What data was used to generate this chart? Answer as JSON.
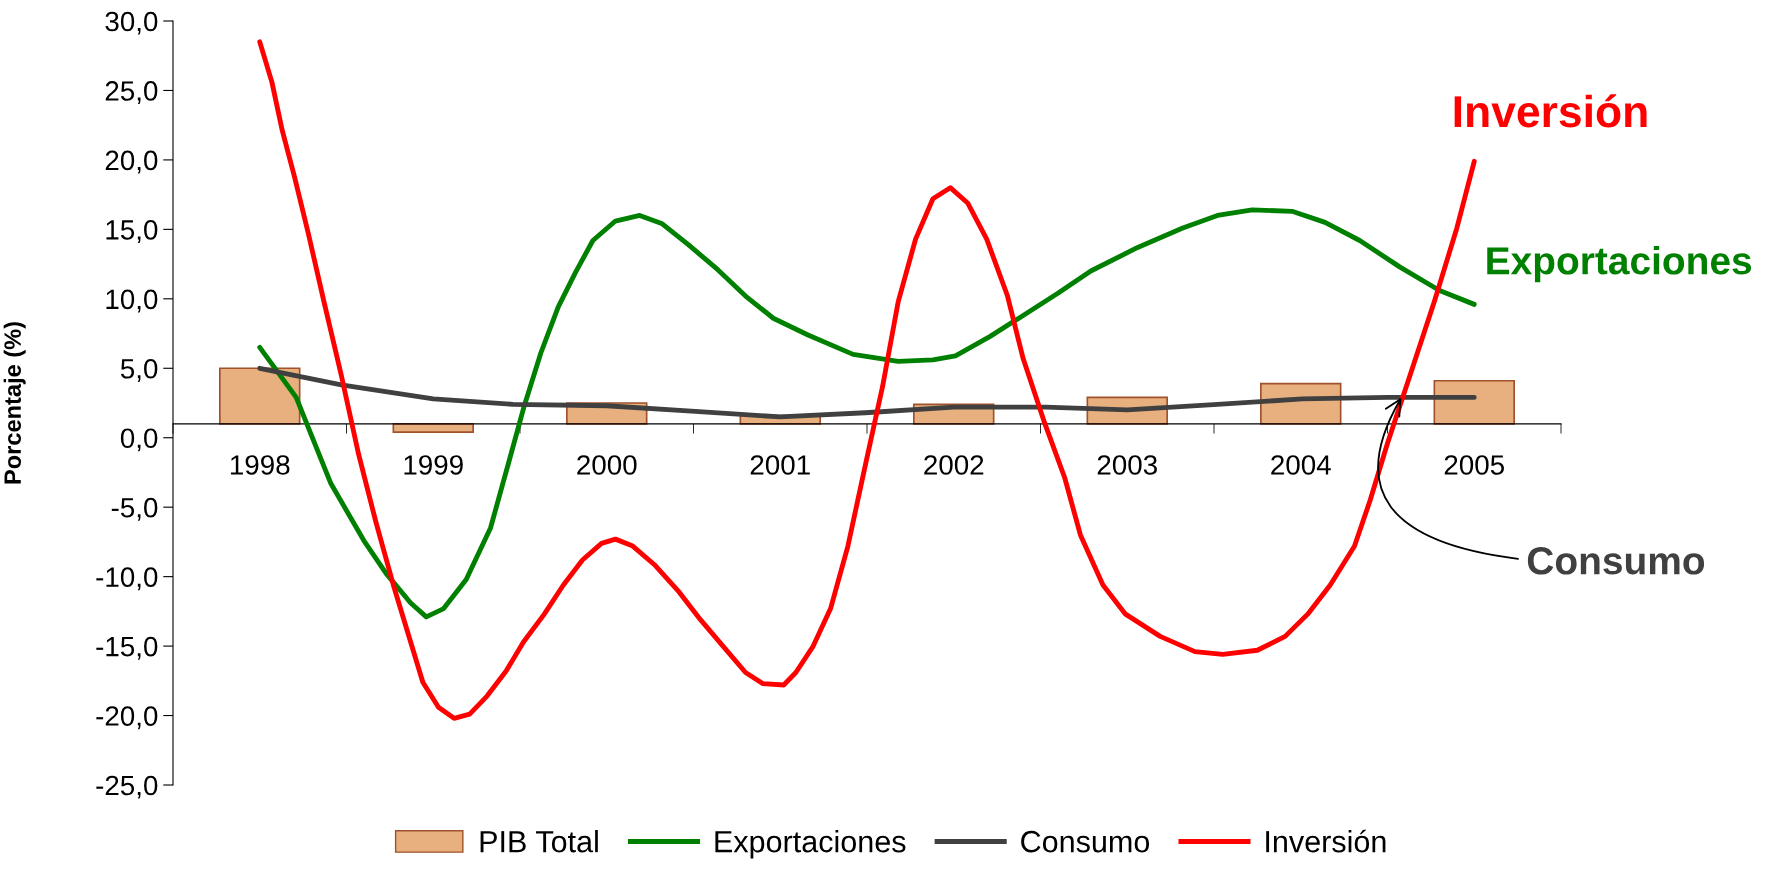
{
  "chart_data": {
    "type": "bar",
    "ylabel": "Porcentaje (%)",
    "x": [
      1998,
      1999,
      2000,
      2001,
      2002,
      2003,
      2004,
      2005
    ],
    "series": [
      {
        "name": "PIB Total",
        "color": "#e8b07f",
        "base": [
          1,
          1,
          1,
          1,
          1,
          1,
          1,
          1
        ],
        "values": [
          4.0,
          -0.6,
          1.5,
          0.6,
          1.4,
          1.9,
          2.9,
          3.1
        ]
      },
      {
        "name": "Exportaciones",
        "type": "line",
        "color": "#008000",
        "x": [
          1998,
          1998.21,
          1998.41,
          1998.6,
          1998.73,
          1998.87,
          1998.96,
          1999.06,
          1999.19,
          1999.33,
          1999.43,
          1999.52,
          1999.62,
          1999.72,
          1999.82,
          1999.92,
          2000.05,
          2000.19,
          2000.32,
          2000.47,
          2000.64,
          2000.8,
          2000.96,
          2001.16,
          2001.42,
          2001.68,
          2001.88,
          2002.01,
          2002.21,
          2002.4,
          2002.6,
          2002.79,
          2003.06,
          2003.32,
          2003.52,
          2003.72,
          2003.95,
          2004.14,
          2004.34,
          2004.57,
          2004.8,
          2005
        ],
        "values": [
          6.5,
          2.9,
          -3.3,
          -7.4,
          -9.8,
          -11.9,
          -12.9,
          -12.3,
          -10.2,
          -6.5,
          -2.0,
          2.1,
          6.1,
          9.4,
          11.9,
          14.2,
          15.6,
          16.0,
          15.4,
          13.9,
          12.1,
          10.2,
          8.6,
          7.4,
          6.0,
          5.5,
          5.6,
          5.9,
          7.3,
          8.8,
          10.4,
          12.0,
          13.7,
          15.1,
          16.0,
          16.4,
          16.3,
          15.5,
          14.2,
          12.3,
          10.6,
          9.6
        ]
      },
      {
        "name": "Consumo",
        "type": "line",
        "color": "#404040",
        "x": [
          1998,
          1998.47,
          1999,
          1999.46,
          2000,
          2000.51,
          2001,
          2001.49,
          2002,
          2002.53,
          2003,
          2003.52,
          2004.01,
          2004.5,
          2005
        ],
        "values": [
          5.0,
          3.8,
          2.8,
          2.4,
          2.3,
          1.9,
          1.5,
          1.8,
          2.2,
          2.2,
          2.0,
          2.4,
          2.8,
          2.9,
          2.9
        ]
      },
      {
        "name": "Inversión",
        "type": "line",
        "color": "#ff0000",
        "x": [
          1998,
          1998.07,
          1998.13,
          1998.2,
          1998.28,
          1998.37,
          1998.47,
          1998.57,
          1998.67,
          1998.77,
          1998.85,
          1998.94,
          1999.03,
          1999.12,
          1999.21,
          1999.31,
          1999.42,
          1999.52,
          1999.64,
          1999.75,
          1999.86,
          1999.97,
          2000.05,
          2000.15,
          2000.28,
          2000.41,
          2000.54,
          2000.67,
          2000.8,
          2000.9,
          2001.02,
          2001.09,
          2001.19,
          2001.29,
          2001.39,
          2001.49,
          2001.59,
          2001.68,
          2001.78,
          2001.88,
          2001.98,
          2002.08,
          2002.19,
          2002.31,
          2002.4,
          2002.52,
          2002.64,
          2002.73,
          2002.86,
          2002.99,
          2003.19,
          2003.39,
          2003.55,
          2003.75,
          2003.91,
          2004.04,
          2004.17,
          2004.31,
          2004.4,
          2004.5,
          2004.63,
          2004.77,
          2004.9,
          2005
        ],
        "values": [
          28.5,
          25.6,
          22.1,
          18.8,
          14.7,
          9.8,
          4.5,
          -1.2,
          -6.1,
          -10.6,
          -13.9,
          -17.6,
          -19.4,
          -20.2,
          -19.9,
          -18.6,
          -16.8,
          -14.7,
          -12.7,
          -10.6,
          -8.8,
          -7.6,
          -7.3,
          -7.8,
          -9.2,
          -11.0,
          -13.1,
          -15.0,
          -16.9,
          -17.7,
          -17.8,
          -16.9,
          -15.0,
          -12.3,
          -7.8,
          -2.0,
          3.7,
          9.8,
          14.3,
          17.2,
          18.0,
          16.9,
          14.3,
          10.2,
          5.7,
          1.2,
          -2.9,
          -7.0,
          -10.6,
          -12.7,
          -14.3,
          -15.4,
          -15.6,
          -15.3,
          -14.3,
          -12.7,
          -10.6,
          -7.8,
          -4.5,
          -0.4,
          4.5,
          9.8,
          15.1,
          19.9
        ]
      }
    ],
    "xlim": [
      1997.5,
      2005.5
    ],
    "xticks": [
      1998,
      1999,
      2000,
      2001,
      2002,
      2003,
      2004,
      2005
    ],
    "ylim": [
      -25,
      30
    ],
    "yticks": [
      {
        "value": -25,
        "label": "-25,0"
      },
      {
        "value": -20,
        "label": "-20,0"
      },
      {
        "value": -15,
        "label": "-15,0"
      },
      {
        "value": -10,
        "label": "-10,0"
      },
      {
        "value": -5,
        "label": "-5,0"
      },
      {
        "value": 0,
        "label": "0,0"
      },
      {
        "value": 5,
        "label": "5,0"
      },
      {
        "value": 10,
        "label": "10,0"
      },
      {
        "value": 15,
        "label": "15,0"
      },
      {
        "value": 20,
        "label": "20,0"
      },
      {
        "value": 25,
        "label": "25,0"
      },
      {
        "value": 30,
        "label": "30,0"
      }
    ],
    "annotations": [
      "Inversión",
      "Exportaciones",
      {
        "text": "Consumo",
        "x": 2004.58,
        "y": 2.9
      }
    ],
    "legend": "bottom"
  }
}
